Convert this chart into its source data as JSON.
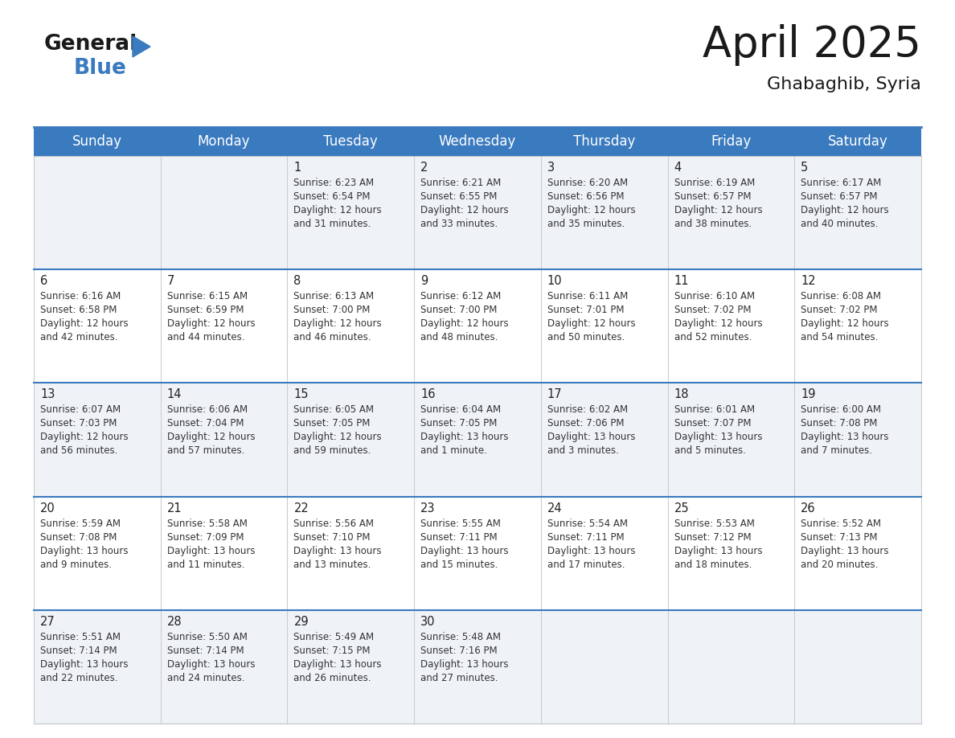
{
  "title": "April 2025",
  "subtitle": "Ghabaghib, Syria",
  "header_color": "#3a7abf",
  "header_text_color": "#ffffff",
  "row_bg_even": "#eff3f8",
  "row_bg_odd": "#ffffff",
  "day_names": [
    "Sunday",
    "Monday",
    "Tuesday",
    "Wednesday",
    "Thursday",
    "Friday",
    "Saturday"
  ],
  "title_fontsize": 38,
  "subtitle_fontsize": 16,
  "header_fontsize": 12,
  "day_num_fontsize": 10.5,
  "cell_fontsize": 8.5,
  "days": [
    {
      "day": 1,
      "col": 2,
      "row": 0,
      "sunrise": "6:23 AM",
      "sunset": "6:54 PM",
      "daylight_h": "12 hours",
      "daylight_m": "and 31 minutes."
    },
    {
      "day": 2,
      "col": 3,
      "row": 0,
      "sunrise": "6:21 AM",
      "sunset": "6:55 PM",
      "daylight_h": "12 hours",
      "daylight_m": "and 33 minutes."
    },
    {
      "day": 3,
      "col": 4,
      "row": 0,
      "sunrise": "6:20 AM",
      "sunset": "6:56 PM",
      "daylight_h": "12 hours",
      "daylight_m": "and 35 minutes."
    },
    {
      "day": 4,
      "col": 5,
      "row": 0,
      "sunrise": "6:19 AM",
      "sunset": "6:57 PM",
      "daylight_h": "12 hours",
      "daylight_m": "and 38 minutes."
    },
    {
      "day": 5,
      "col": 6,
      "row": 0,
      "sunrise": "6:17 AM",
      "sunset": "6:57 PM",
      "daylight_h": "12 hours",
      "daylight_m": "and 40 minutes."
    },
    {
      "day": 6,
      "col": 0,
      "row": 1,
      "sunrise": "6:16 AM",
      "sunset": "6:58 PM",
      "daylight_h": "12 hours",
      "daylight_m": "and 42 minutes."
    },
    {
      "day": 7,
      "col": 1,
      "row": 1,
      "sunrise": "6:15 AM",
      "sunset": "6:59 PM",
      "daylight_h": "12 hours",
      "daylight_m": "and 44 minutes."
    },
    {
      "day": 8,
      "col": 2,
      "row": 1,
      "sunrise": "6:13 AM",
      "sunset": "7:00 PM",
      "daylight_h": "12 hours",
      "daylight_m": "and 46 minutes."
    },
    {
      "day": 9,
      "col": 3,
      "row": 1,
      "sunrise": "6:12 AM",
      "sunset": "7:00 PM",
      "daylight_h": "12 hours",
      "daylight_m": "and 48 minutes."
    },
    {
      "day": 10,
      "col": 4,
      "row": 1,
      "sunrise": "6:11 AM",
      "sunset": "7:01 PM",
      "daylight_h": "12 hours",
      "daylight_m": "and 50 minutes."
    },
    {
      "day": 11,
      "col": 5,
      "row": 1,
      "sunrise": "6:10 AM",
      "sunset": "7:02 PM",
      "daylight_h": "12 hours",
      "daylight_m": "and 52 minutes."
    },
    {
      "day": 12,
      "col": 6,
      "row": 1,
      "sunrise": "6:08 AM",
      "sunset": "7:02 PM",
      "daylight_h": "12 hours",
      "daylight_m": "and 54 minutes."
    },
    {
      "day": 13,
      "col": 0,
      "row": 2,
      "sunrise": "6:07 AM",
      "sunset": "7:03 PM",
      "daylight_h": "12 hours",
      "daylight_m": "and 56 minutes."
    },
    {
      "day": 14,
      "col": 1,
      "row": 2,
      "sunrise": "6:06 AM",
      "sunset": "7:04 PM",
      "daylight_h": "12 hours",
      "daylight_m": "and 57 minutes."
    },
    {
      "day": 15,
      "col": 2,
      "row": 2,
      "sunrise": "6:05 AM",
      "sunset": "7:05 PM",
      "daylight_h": "12 hours",
      "daylight_m": "and 59 minutes."
    },
    {
      "day": 16,
      "col": 3,
      "row": 2,
      "sunrise": "6:04 AM",
      "sunset": "7:05 PM",
      "daylight_h": "13 hours",
      "daylight_m": "and 1 minute."
    },
    {
      "day": 17,
      "col": 4,
      "row": 2,
      "sunrise": "6:02 AM",
      "sunset": "7:06 PM",
      "daylight_h": "13 hours",
      "daylight_m": "and 3 minutes."
    },
    {
      "day": 18,
      "col": 5,
      "row": 2,
      "sunrise": "6:01 AM",
      "sunset": "7:07 PM",
      "daylight_h": "13 hours",
      "daylight_m": "and 5 minutes."
    },
    {
      "day": 19,
      "col": 6,
      "row": 2,
      "sunrise": "6:00 AM",
      "sunset": "7:08 PM",
      "daylight_h": "13 hours",
      "daylight_m": "and 7 minutes."
    },
    {
      "day": 20,
      "col": 0,
      "row": 3,
      "sunrise": "5:59 AM",
      "sunset": "7:08 PM",
      "daylight_h": "13 hours",
      "daylight_m": "and 9 minutes."
    },
    {
      "day": 21,
      "col": 1,
      "row": 3,
      "sunrise": "5:58 AM",
      "sunset": "7:09 PM",
      "daylight_h": "13 hours",
      "daylight_m": "and 11 minutes."
    },
    {
      "day": 22,
      "col": 2,
      "row": 3,
      "sunrise": "5:56 AM",
      "sunset": "7:10 PM",
      "daylight_h": "13 hours",
      "daylight_m": "and 13 minutes."
    },
    {
      "day": 23,
      "col": 3,
      "row": 3,
      "sunrise": "5:55 AM",
      "sunset": "7:11 PM",
      "daylight_h": "13 hours",
      "daylight_m": "and 15 minutes."
    },
    {
      "day": 24,
      "col": 4,
      "row": 3,
      "sunrise": "5:54 AM",
      "sunset": "7:11 PM",
      "daylight_h": "13 hours",
      "daylight_m": "and 17 minutes."
    },
    {
      "day": 25,
      "col": 5,
      "row": 3,
      "sunrise": "5:53 AM",
      "sunset": "7:12 PM",
      "daylight_h": "13 hours",
      "daylight_m": "and 18 minutes."
    },
    {
      "day": 26,
      "col": 6,
      "row": 3,
      "sunrise": "5:52 AM",
      "sunset": "7:13 PM",
      "daylight_h": "13 hours",
      "daylight_m": "and 20 minutes."
    },
    {
      "day": 27,
      "col": 0,
      "row": 4,
      "sunrise": "5:51 AM",
      "sunset": "7:14 PM",
      "daylight_h": "13 hours",
      "daylight_m": "and 22 minutes."
    },
    {
      "day": 28,
      "col": 1,
      "row": 4,
      "sunrise": "5:50 AM",
      "sunset": "7:14 PM",
      "daylight_h": "13 hours",
      "daylight_m": "and 24 minutes."
    },
    {
      "day": 29,
      "col": 2,
      "row": 4,
      "sunrise": "5:49 AM",
      "sunset": "7:15 PM",
      "daylight_h": "13 hours",
      "daylight_m": "and 26 minutes."
    },
    {
      "day": 30,
      "col": 3,
      "row": 4,
      "sunrise": "5:48 AM",
      "sunset": "7:16 PM",
      "daylight_h": "13 hours",
      "daylight_m": "and 27 minutes."
    }
  ]
}
